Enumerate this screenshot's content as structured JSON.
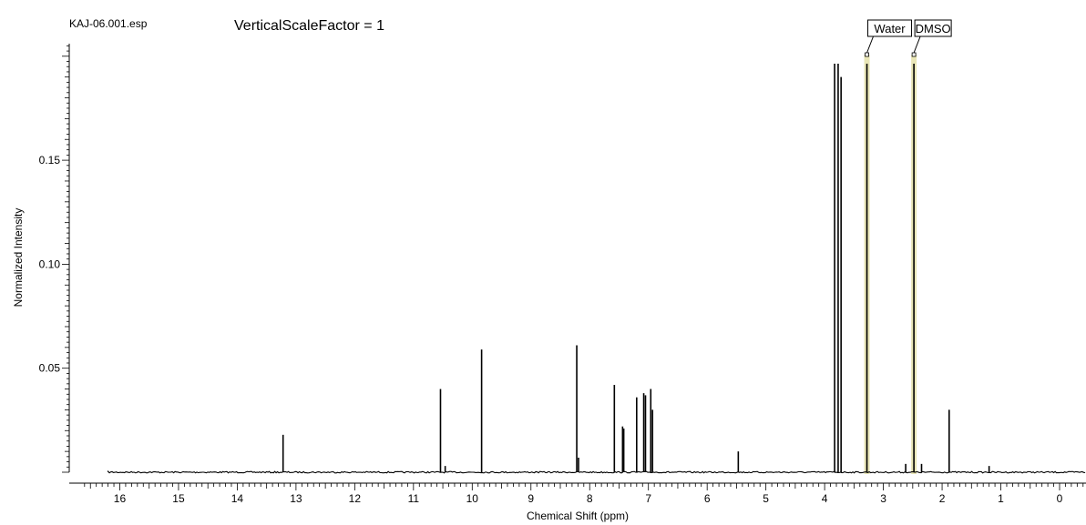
{
  "header": {
    "file_name": "KAJ-06.001.esp",
    "scale_label": "VerticalScaleFactor = 1"
  },
  "chart_data": {
    "type": "line",
    "xlabel": "Chemical Shift (ppm)",
    "ylabel": "Normalized Intensity",
    "xlim": [
      16.6,
      -0.45
    ],
    "ylim": [
      0.0,
      0.2
    ],
    "x_reversed": true,
    "x_ticks": [
      16,
      15,
      14,
      13,
      12,
      11,
      10,
      9,
      8,
      7,
      6,
      5,
      4,
      3,
      2,
      1,
      0
    ],
    "y_ticks": [
      {
        "value": 0.05,
        "label": "0.05"
      },
      {
        "value": 0.1,
        "label": "0.10"
      },
      {
        "value": 0.15,
        "label": "0.15"
      }
    ],
    "baseline_range": [
      16.2,
      -0.45
    ],
    "peaks": [
      {
        "x": 13.22,
        "y": 0.018
      },
      {
        "x": 10.54,
        "y": 0.04
      },
      {
        "x": 10.46,
        "y": 0.003
      },
      {
        "x": 9.84,
        "y": 0.059
      },
      {
        "x": 8.22,
        "y": 0.061
      },
      {
        "x": 8.19,
        "y": 0.007
      },
      {
        "x": 7.58,
        "y": 0.042
      },
      {
        "x": 7.44,
        "y": 0.022
      },
      {
        "x": 7.42,
        "y": 0.021
      },
      {
        "x": 7.2,
        "y": 0.036
      },
      {
        "x": 7.08,
        "y": 0.038
      },
      {
        "x": 7.05,
        "y": 0.037
      },
      {
        "x": 6.96,
        "y": 0.04
      },
      {
        "x": 6.93,
        "y": 0.03
      },
      {
        "x": 5.47,
        "y": 0.01
      },
      {
        "x": 3.83,
        "y": 0.2
      },
      {
        "x": 3.77,
        "y": 0.2
      },
      {
        "x": 3.72,
        "y": 0.19
      },
      {
        "x": 3.28,
        "y": 0.2
      },
      {
        "x": 2.62,
        "y": 0.004
      },
      {
        "x": 2.48,
        "y": 0.2
      },
      {
        "x": 2.35,
        "y": 0.004
      },
      {
        "x": 1.88,
        "y": 0.03
      },
      {
        "x": 1.2,
        "y": 0.003
      }
    ],
    "solvent_labels": [
      {
        "label": "Water",
        "x": 3.28
      },
      {
        "label": "DMSO",
        "x": 2.48
      }
    ],
    "colors": {
      "trace": "#000000",
      "solvent_highlight": "#e9e6b6"
    }
  }
}
